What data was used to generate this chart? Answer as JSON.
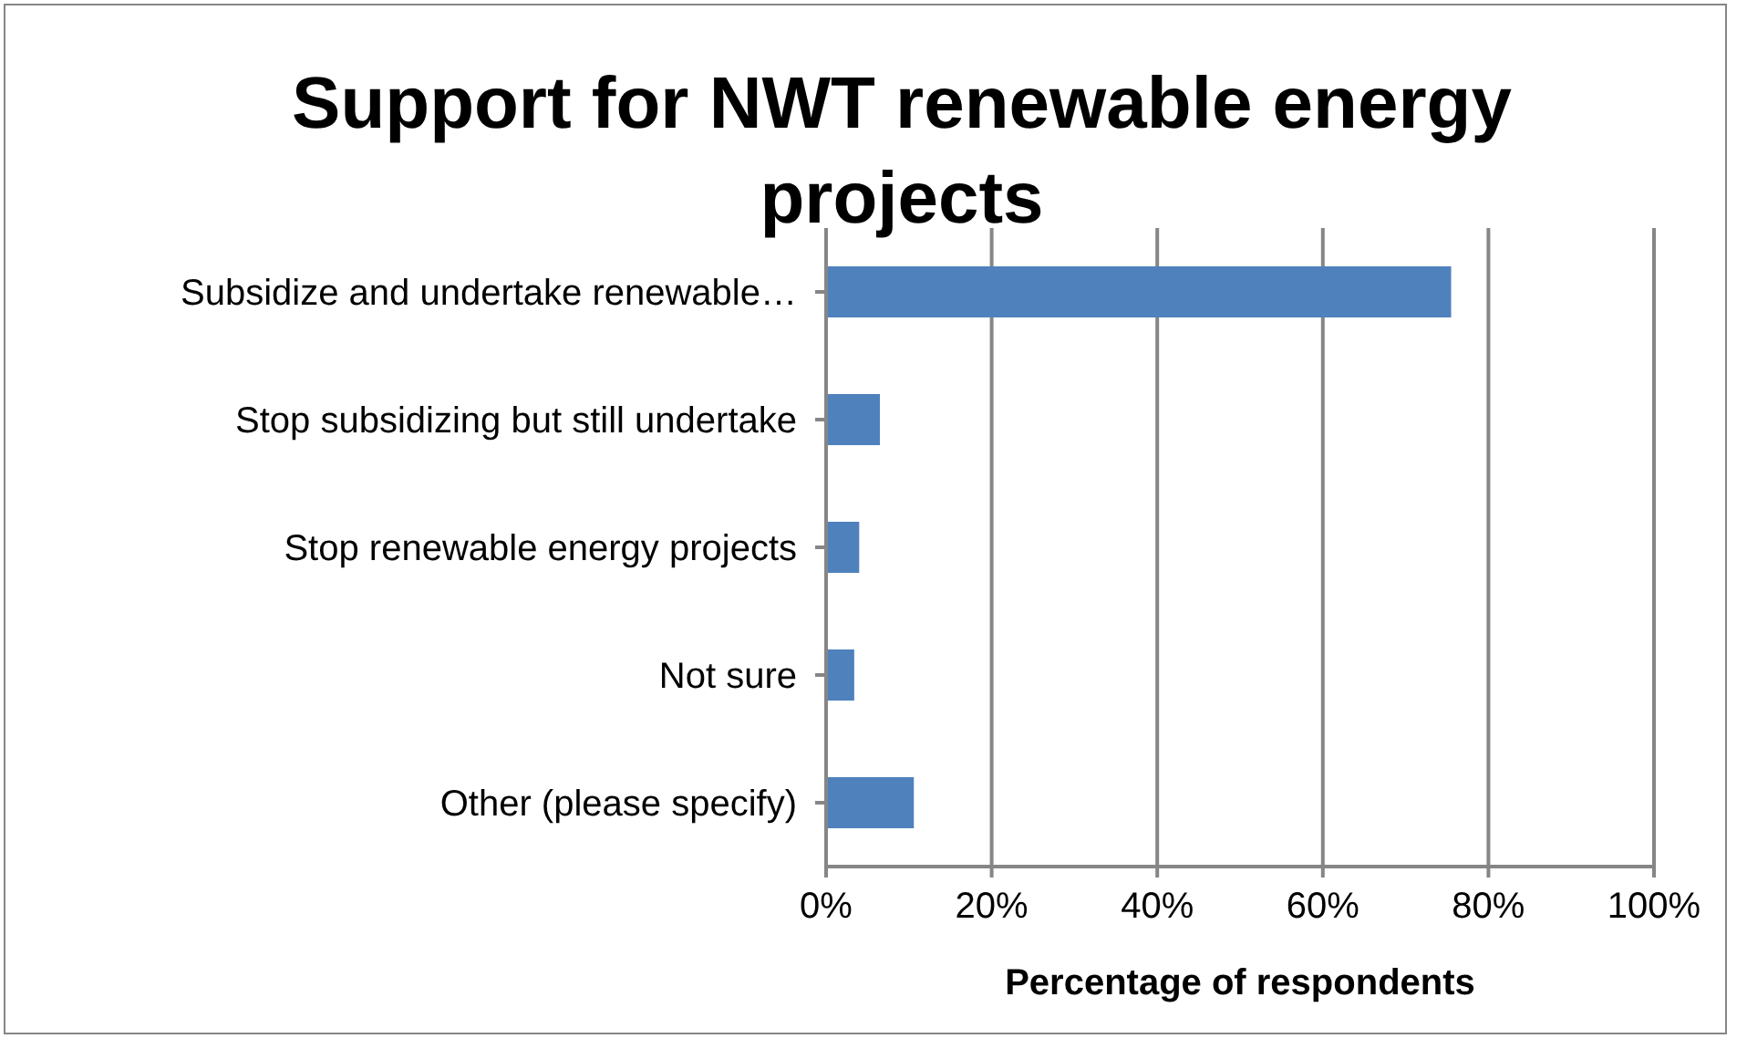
{
  "chart_data": {
    "type": "bar",
    "orientation": "horizontal",
    "title": "Support for NWT renewable energy projects",
    "xlabel": "Percentage of respondents",
    "categories": [
      "Subsidize and undertake renewable…",
      "Stop subsidizing but still undertake",
      "Stop renewable energy projects",
      "Not sure",
      "Other (please specify)"
    ],
    "values": [
      75.5,
      6.5,
      4.0,
      3.4,
      10.6
    ],
    "color": "#4f81bd",
    "xlim": [
      0,
      100
    ],
    "xticks": [
      {
        "value": 0,
        "label": "0%"
      },
      {
        "value": 20,
        "label": "20%"
      },
      {
        "value": 40,
        "label": "40%"
      },
      {
        "value": 60,
        "label": "60%"
      },
      {
        "value": 80,
        "label": "80%"
      },
      {
        "value": 100,
        "label": "100%"
      }
    ],
    "grid": "x"
  }
}
